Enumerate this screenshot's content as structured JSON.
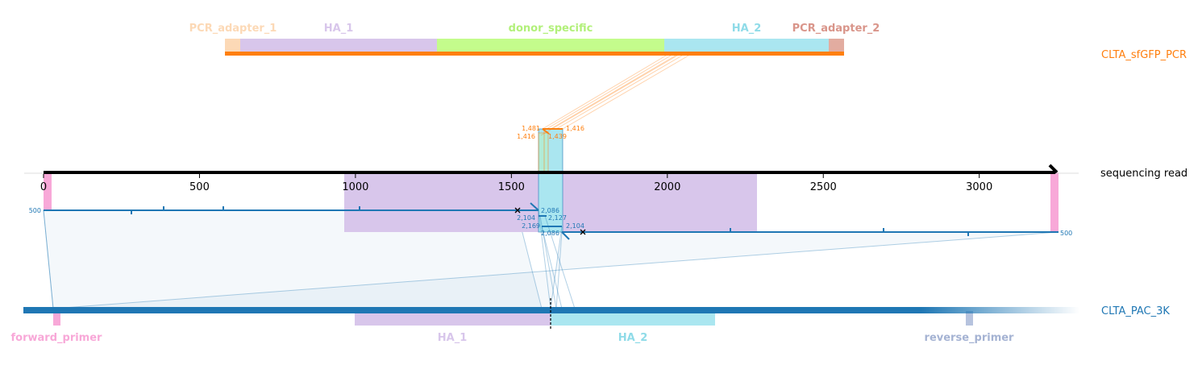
{
  "donor": {
    "name": "CLTA_sfGFP_PCR",
    "features": [
      {
        "label": "PCR_adapter_1",
        "color": "#fcd9b6"
      },
      {
        "label": "HA_1",
        "color": "#d8c6eb"
      },
      {
        "label": "donor_specific",
        "color": "#c4fc8c"
      },
      {
        "label": "HA_2",
        "color": "#aae6f0"
      },
      {
        "label": "PCR_adapter_2",
        "color": "#e2aca0"
      }
    ],
    "color": "#ff7f0e"
  },
  "read": {
    "name": "sequencing read",
    "ticks": [
      "0",
      "500",
      "1000",
      "1500",
      "2000",
      "2500",
      "3000"
    ],
    "alignment_labels": {
      "left_end": "500",
      "right_end": "500",
      "a": "2,104",
      "b": "2,086",
      "c": "2,127",
      "d": "2,169",
      "e": "2,086",
      "f": "2,104"
    },
    "donor_alignment_labels": {
      "a": "1,481",
      "b": "1,416",
      "c": "1,416",
      "d": "1,439"
    },
    "color": "#1f77b4"
  },
  "target": {
    "name": "CLTA_PAC_3K",
    "features": [
      {
        "label": "forward_primer",
        "color": "#f8a8d8"
      },
      {
        "label": "HA_1",
        "color": "#d8c6eb"
      },
      {
        "label": "HA_2",
        "color": "#aae6f0"
      },
      {
        "label": "reverse_primer",
        "color": "#b6c3de"
      }
    ],
    "color": "#1f77b4"
  }
}
